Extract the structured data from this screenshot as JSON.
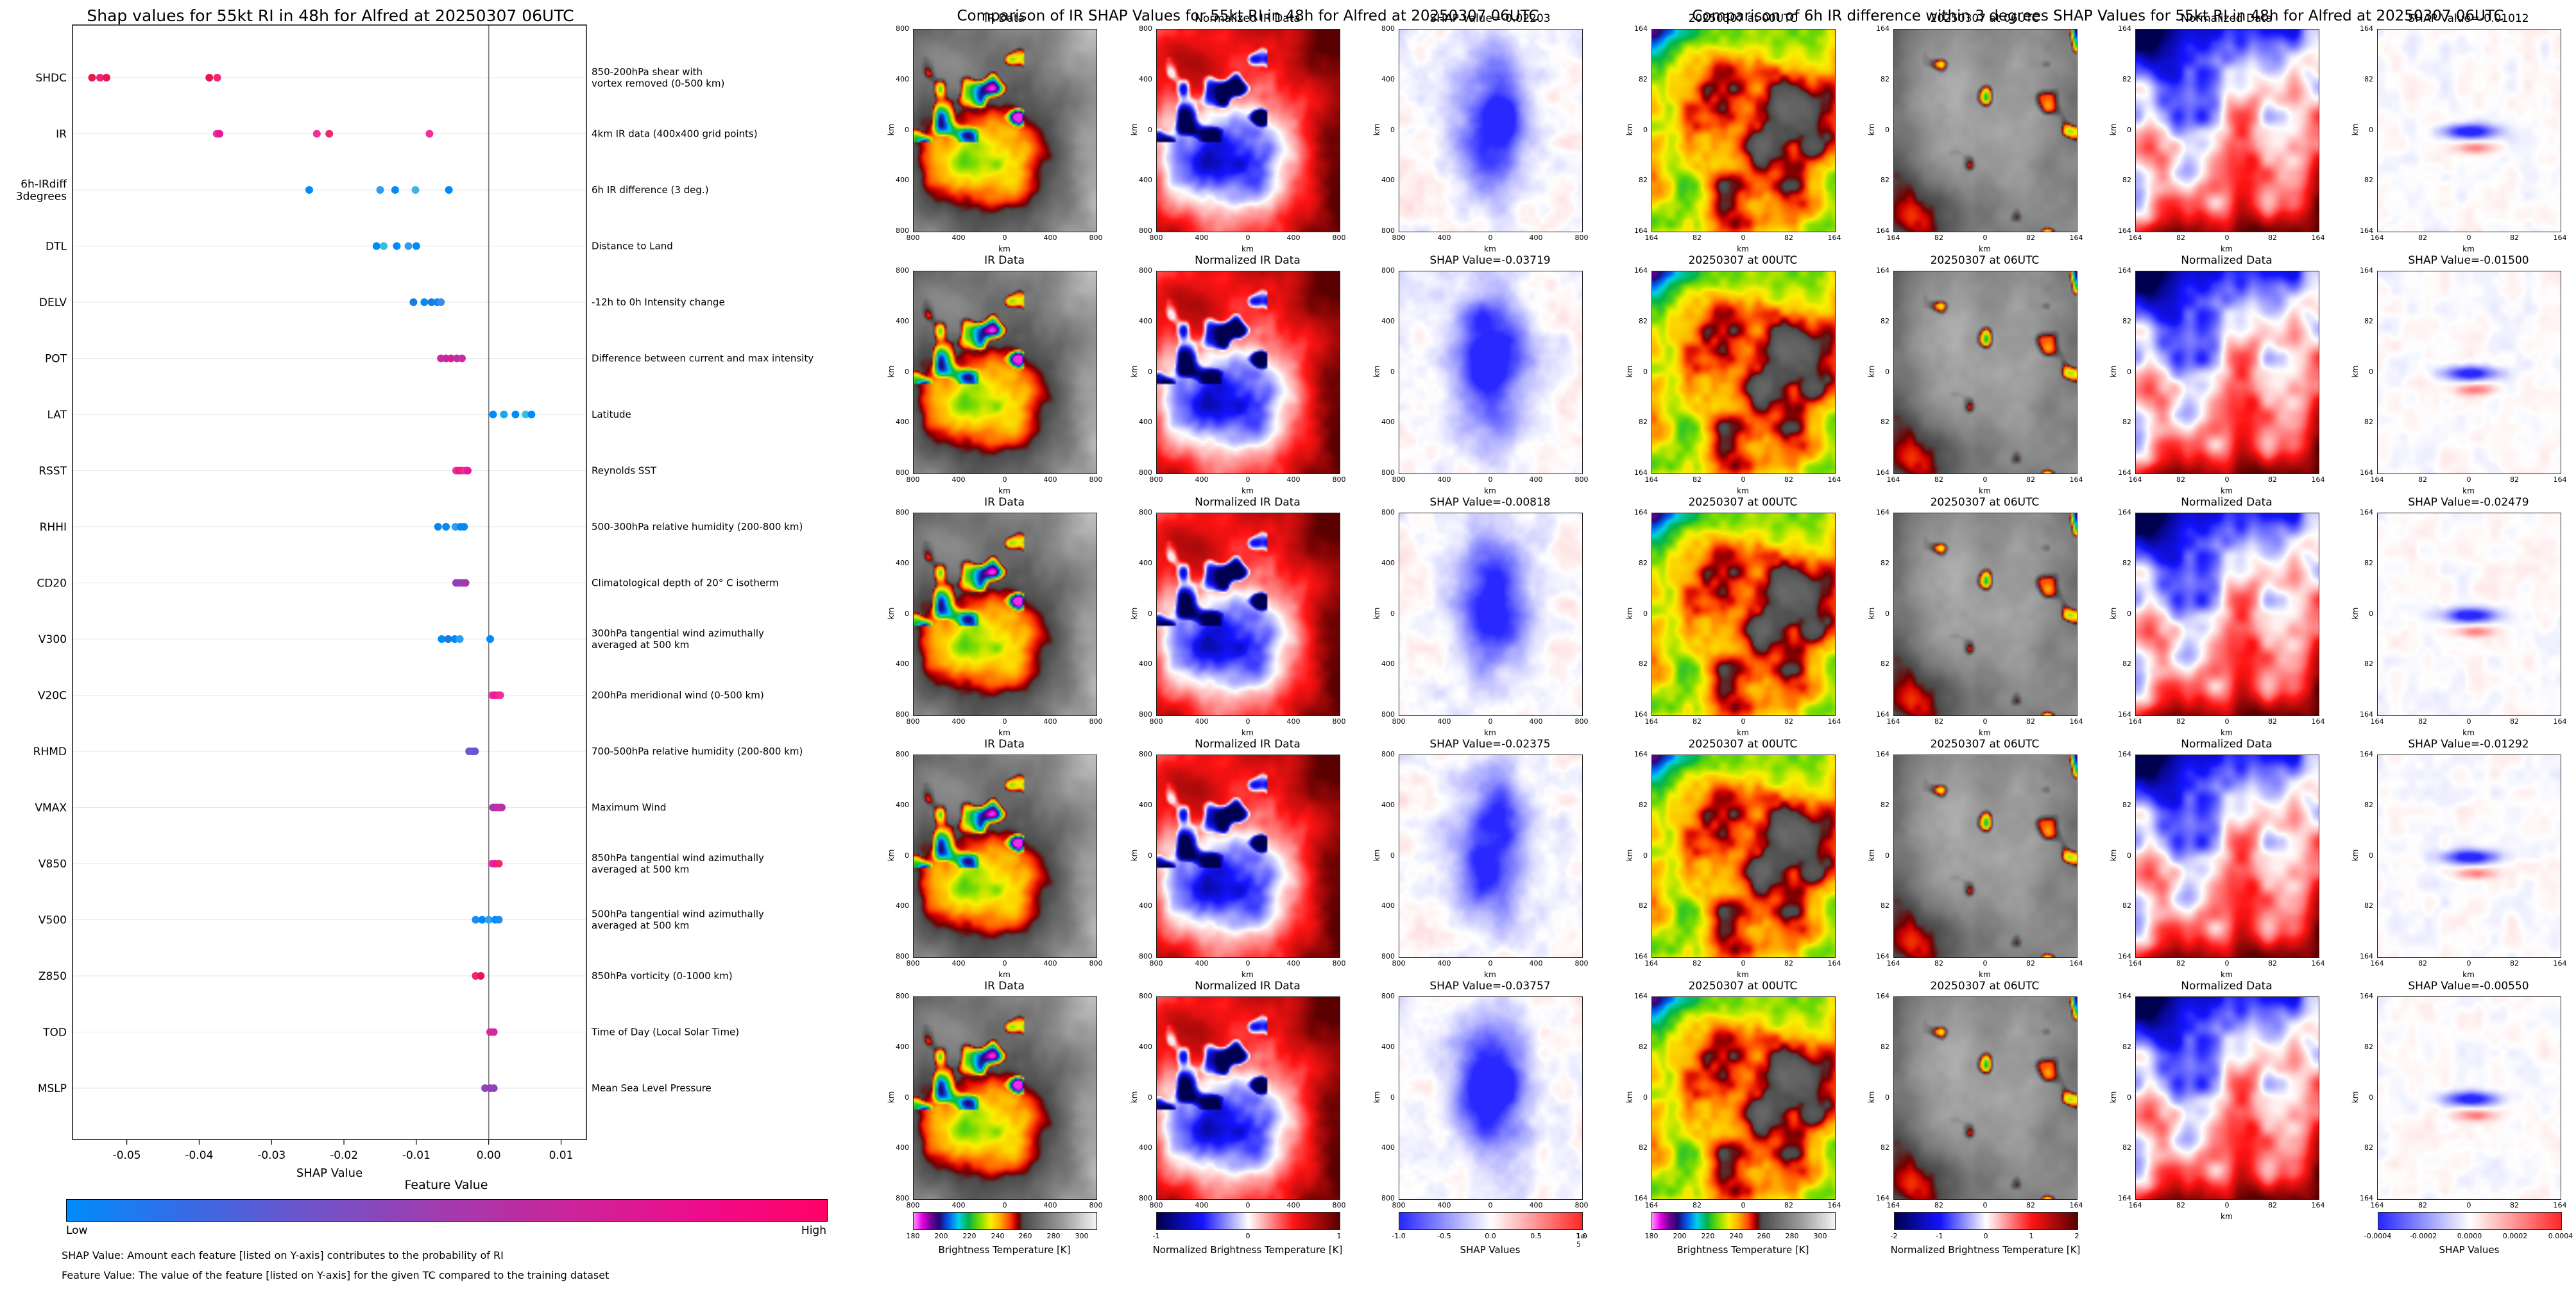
{
  "left_panel": {
    "colorbar": {
      "title": "Feature Value",
      "low": "Low",
      "high": "High",
      "gradient": [
        "#008bfb",
        "#3a6ae4",
        "#7452c8",
        "#a33aae",
        "#cc2499",
        "#ee0c8b",
        "#ff0266"
      ]
    },
    "footnote1": "SHAP Value: Amount each feature [listed on Y-axis] contributes to the probability of RI",
    "footnote2": "Feature Value: The value of the feature [listed on Y-axis] for the given TC compared to the training dataset"
  },
  "chart_data": [
    {
      "type": "scatter",
      "title": "Shap values for 55kt RI in 48h for Alfred at 20250307 06UTC",
      "xlabel": "SHAP Value",
      "xlim": [
        -0.0575,
        0.0135
      ],
      "xticks": [
        {
          "v": -0.05,
          "label": "-0.05"
        },
        {
          "v": -0.04,
          "label": "-0.04"
        },
        {
          "v": -0.03,
          "label": "-0.03"
        },
        {
          "v": -0.02,
          "label": "-0.02"
        },
        {
          "v": -0.01,
          "label": "-0.01"
        },
        {
          "v": 0.0,
          "label": "0.00"
        },
        {
          "v": 0.01,
          "label": "0.01"
        }
      ],
      "features": [
        {
          "name": [
            "SHDC"
          ],
          "desc": [
            "850-200hPa shear with",
            "vortex removed (0-500 km)"
          ],
          "values": [
            -0.0548,
            -0.0537,
            -0.0528,
            -0.0386,
            -0.0375
          ],
          "colors": [
            "#e8174f",
            "#f0266e",
            "#e8174f",
            "#e8174f",
            "#f0266e"
          ]
        },
        {
          "name": [
            "IR"
          ],
          "desc": [
            "4km IR data (400x400 grid points)"
          ],
          "values": [
            -0.03757,
            -0.03719,
            -0.02375,
            -0.02203,
            -0.00818
          ],
          "colors": [
            "#f22da0",
            "#e8179b",
            "#f22da0",
            "#f0266e",
            "#f22da0"
          ]
        },
        {
          "name": [
            "6h-IRdiff",
            "3degrees"
          ],
          "desc": [
            "6h IR difference (3 deg.)"
          ],
          "values": [
            -0.02479,
            -0.015,
            -0.01292,
            -0.01012,
            -0.0055
          ],
          "colors": [
            "#008bfb",
            "#2f9df3",
            "#008bfb",
            "#45b1e8",
            "#008bfb"
          ]
        },
        {
          "name": [
            "DTL"
          ],
          "desc": [
            "Distance to Land"
          ],
          "values": [
            -0.0155,
            -0.0145,
            -0.0127,
            -0.0111,
            -0.01
          ],
          "colors": [
            "#008bfb",
            "#34c0e0",
            "#008bfb",
            "#2f9df3",
            "#008bfb"
          ]
        },
        {
          "name": [
            "DELV"
          ],
          "desc": [
            "-12h to 0h Intensity change"
          ],
          "values": [
            -0.0104,
            -0.0089,
            -0.0079,
            -0.0071,
            -0.0066
          ],
          "colors": [
            "#1f7ae0",
            "#008bfb",
            "#1f7ae0",
            "#008bfb",
            "#3f8ae8"
          ]
        },
        {
          "name": [
            "POT"
          ],
          "desc": [
            "Difference between current and max intensity"
          ],
          "values": [
            -0.0066,
            -0.0059,
            -0.0052,
            -0.0044,
            -0.0037
          ],
          "colors": [
            "#cf2aa2",
            "#c32b9f",
            "#d81f92",
            "#b535a8",
            "#cf2aa2"
          ]
        },
        {
          "name": [
            "LAT"
          ],
          "desc": [
            "Latitude"
          ],
          "values": [
            0.0006,
            0.0021,
            0.0037,
            0.0051,
            0.0059
          ],
          "colors": [
            "#008bfb",
            "#18a8ee",
            "#008bfb",
            "#34c0e0",
            "#008bfb"
          ]
        },
        {
          "name": [
            "RSST"
          ],
          "desc": [
            "Reynolds SST"
          ],
          "values": [
            -0.0045,
            -0.0041,
            -0.0037,
            -0.0032,
            -0.0029
          ],
          "colors": [
            "#f22da0",
            "#e8179b",
            "#f0266e",
            "#f22da0",
            "#e8179b"
          ]
        },
        {
          "name": [
            "RHHI"
          ],
          "desc": [
            "500-300hPa relative humidity (200-800 km)"
          ],
          "values": [
            -0.007,
            -0.0059,
            -0.0046,
            -0.0039,
            -0.0034
          ],
          "colors": [
            "#0b86ea",
            "#008bfb",
            "#2f9df3",
            "#008bfb",
            "#0b86ea"
          ]
        },
        {
          "name": [
            "CD20"
          ],
          "desc": [
            "Climatological depth of 20° C isotherm"
          ],
          "values": [
            -0.0045,
            -0.0041,
            -0.0036,
            -0.0032
          ],
          "colors": [
            "#9b3bb0",
            "#8d44c0",
            "#9b3bb0",
            "#a637ab"
          ]
        },
        {
          "name": [
            "V300"
          ],
          "desc": [
            "300hPa tangential wind azimuthally",
            "averaged at 500 km"
          ],
          "values": [
            -0.0065,
            -0.0056,
            -0.0047,
            -0.004,
            0.0002
          ],
          "colors": [
            "#008bfb",
            "#1f7ae0",
            "#008bfb",
            "#2f9df3",
            "#008bfb"
          ]
        },
        {
          "name": [
            "V20C"
          ],
          "desc": [
            "200hPa meridional wind (0-500 km)"
          ],
          "values": [
            0.0005,
            0.0009,
            0.0013,
            0.0016
          ],
          "colors": [
            "#f22da0",
            "#e8179b",
            "#f0266e",
            "#f22da0"
          ]
        },
        {
          "name": [
            "RHMD"
          ],
          "desc": [
            "700-500hPa relative humidity (200-800 km)"
          ],
          "values": [
            -0.0027,
            -0.0023,
            -0.0019
          ],
          "colors": [
            "#6a55cf",
            "#5a63d8",
            "#6a55cf"
          ]
        },
        {
          "name": [
            "VMAX"
          ],
          "desc": [
            "Maximum Wind"
          ],
          "values": [
            0.0006,
            0.001,
            0.0014,
            0.0018
          ],
          "colors": [
            "#b535a8",
            "#a637ab",
            "#cf2aa2",
            "#b535a8"
          ]
        },
        {
          "name": [
            "V850"
          ],
          "desc": [
            "850hPa tangential wind azimuthally",
            "averaged at 500 km"
          ],
          "values": [
            0.0005,
            0.0009,
            0.0014
          ],
          "colors": [
            "#f22da0",
            "#e8179b",
            "#f0266e"
          ]
        },
        {
          "name": [
            "V500"
          ],
          "desc": [
            "500hPa tangential wind azimuthally",
            "averaged at 500 km"
          ],
          "values": [
            -0.0018,
            -0.0009,
            0.0,
            0.0009,
            0.0014
          ],
          "colors": [
            "#1a8df0",
            "#008bfb",
            "#2f9df3",
            "#008bfb",
            "#1a8df0"
          ]
        },
        {
          "name": [
            "Z850"
          ],
          "desc": [
            "850hPa vorticity (0-1000 km)"
          ],
          "values": [
            -0.0018,
            -0.0011
          ],
          "colors": [
            "#f0266e",
            "#e8174f"
          ]
        },
        {
          "name": [
            "TOD"
          ],
          "desc": [
            "Time of Day (Local Solar Time)"
          ],
          "values": [
            0.0002,
            0.0007
          ],
          "colors": [
            "#e0219f",
            "#cf2aa2"
          ]
        },
        {
          "name": [
            "MSLP"
          ],
          "desc": [
            "Mean Sea Level Pressure"
          ],
          "values": [
            -0.0005,
            0.0002,
            0.0007
          ],
          "colors": [
            "#8d44c0",
            "#9b3bb0",
            "#8d44c0"
          ]
        }
      ]
    },
    {
      "type": "heatmap",
      "title": "Comparison of IR SHAP Values for 55kt RI in 48h for Alfred at 20250307 06UTC",
      "axis_label": "km",
      "xticks": [
        "800",
        "400",
        "0",
        "400",
        "800"
      ],
      "yticks": [
        "800",
        "400",
        "0",
        "400",
        "800"
      ],
      "rows": [
        {
          "panels": [
            {
              "kind": "ir",
              "title": "IR Data"
            },
            {
              "kind": "norm_ir",
              "title": "Normalized IR Data"
            },
            {
              "kind": "shap",
              "title": "SHAP Value=-0.02203"
            }
          ]
        },
        {
          "panels": [
            {
              "kind": "ir",
              "title": "IR Data"
            },
            {
              "kind": "norm_ir",
              "title": "Normalized IR Data"
            },
            {
              "kind": "shap",
              "title": "SHAP Value=-0.03719"
            }
          ]
        },
        {
          "panels": [
            {
              "kind": "ir",
              "title": "IR Data"
            },
            {
              "kind": "norm_ir",
              "title": "Normalized IR Data"
            },
            {
              "kind": "shap",
              "title": "SHAP Value=-0.00818"
            }
          ]
        },
        {
          "panels": [
            {
              "kind": "ir",
              "title": "IR Data"
            },
            {
              "kind": "norm_ir",
              "title": "Normalized IR Data"
            },
            {
              "kind": "shap",
              "title": "SHAP Value=-0.02375"
            }
          ]
        },
        {
          "panels": [
            {
              "kind": "ir",
              "title": "IR Data"
            },
            {
              "kind": "norm_ir",
              "title": "Normalized IR Data"
            },
            {
              "kind": "shap",
              "title": "SHAP Value=-0.03757"
            }
          ]
        }
      ],
      "colorbars": [
        {
          "title": "Brightness Temperature [K]",
          "kind": "ir",
          "ticks": [
            "180",
            "200",
            "220",
            "240",
            "260",
            "280",
            "300"
          ]
        },
        {
          "title": "Normalized Brightness Temperature [K]",
          "kind": "seismic",
          "ticks": [
            "-1",
            "0",
            "1"
          ]
        },
        {
          "title": "SHAP Values",
          "kind": "bwr",
          "ticks": [
            "-1.0",
            "-0.5",
            "0.0",
            "0.5",
            "1.0"
          ],
          "offset": "1e-5"
        }
      ]
    },
    {
      "type": "heatmap",
      "title": "Comparison of 6h IR difference within 3 degrees SHAP Values for 55kt RI in 48h for Alfred at 20250307 06UTC",
      "axis_label": "km",
      "xticks": [
        "164",
        "82",
        "0",
        "82",
        "164"
      ],
      "yticks": [
        "164",
        "82",
        "0",
        "82",
        "164"
      ],
      "rows": [
        {
          "panels": [
            {
              "kind": "ir00",
              "title": "20250307 at 00UTC"
            },
            {
              "kind": "ir06",
              "title": "20250307 at 06UTC"
            },
            {
              "kind": "normdiff",
              "title": "Normalized Data"
            },
            {
              "kind": "shapdiff",
              "title": "SHAP Value=-0.01012"
            }
          ]
        },
        {
          "panels": [
            {
              "kind": "ir00",
              "title": "20250307 at 00UTC"
            },
            {
              "kind": "ir06",
              "title": "20250307 at 06UTC"
            },
            {
              "kind": "normdiff",
              "title": "Normalized Data"
            },
            {
              "kind": "shapdiff",
              "title": "SHAP Value=-0.01500"
            }
          ]
        },
        {
          "panels": [
            {
              "kind": "ir00",
              "title": "20250307 at 00UTC"
            },
            {
              "kind": "ir06",
              "title": "20250307 at 06UTC"
            },
            {
              "kind": "normdiff",
              "title": "Normalized Data"
            },
            {
              "kind": "shapdiff",
              "title": "SHAP Value=-0.02479"
            }
          ]
        },
        {
          "panels": [
            {
              "kind": "ir00",
              "title": "20250307 at 00UTC"
            },
            {
              "kind": "ir06",
              "title": "20250307 at 06UTC"
            },
            {
              "kind": "normdiff",
              "title": "Normalized Data"
            },
            {
              "kind": "shapdiff",
              "title": "SHAP Value=-0.01292"
            }
          ]
        },
        {
          "panels": [
            {
              "kind": "ir00",
              "title": "20250307 at 00UTC"
            },
            {
              "kind": "ir06",
              "title": "20250307 at 06UTC"
            },
            {
              "kind": "normdiff",
              "title": "Normalized Data"
            },
            {
              "kind": "shapdiff",
              "title": "SHAP Value=-0.00550"
            }
          ]
        }
      ],
      "colorbars": [
        {
          "title": "Brightness Temperature [K]",
          "kind": "ir",
          "ticks": [
            "180",
            "200",
            "220",
            "240",
            "260",
            "280",
            "300"
          ]
        },
        {
          "title": "Normalized Brightness Temperature [K]",
          "kind": "seismic",
          "ticks": [
            "-2",
            "-1",
            "0",
            "1",
            "2"
          ]
        },
        {
          "title": "SHAP Values",
          "kind": "bwr",
          "ticks": [
            "-0.0004",
            "-0.0002",
            "0.0000",
            "0.0002",
            "0.0004"
          ]
        }
      ]
    }
  ]
}
